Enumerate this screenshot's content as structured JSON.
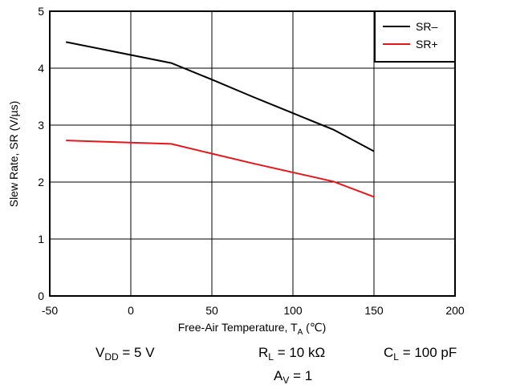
{
  "chart_data": {
    "type": "line",
    "xlabel_main": "Free-Air Temperature, T",
    "xlabel_sub": "A",
    "xlabel_unit": " (℃)",
    "ylabel": "Slew Rate, SR (V/µs)",
    "xlim": [
      -50,
      200
    ],
    "ylim": [
      0,
      5
    ],
    "x_ticks": [
      -50,
      0,
      50,
      100,
      150,
      200
    ],
    "y_ticks": [
      0,
      1,
      2,
      3,
      4,
      5
    ],
    "grid": true,
    "legend_position": "top-right",
    "series": [
      {
        "name": "SR–",
        "color": "#000000",
        "x": [
          -40,
          25,
          50,
          75,
          100,
          125,
          150
        ],
        "y": [
          4.46,
          4.09,
          3.8,
          3.5,
          3.21,
          2.92,
          2.54
        ]
      },
      {
        "name": "SR+",
        "color": "#e0191f",
        "x": [
          -40,
          25,
          50,
          75,
          100,
          125,
          150
        ],
        "y": [
          2.73,
          2.67,
          2.5,
          2.33,
          2.17,
          2.01,
          1.74
        ]
      }
    ],
    "figure_id": "D001"
  },
  "conditions": {
    "vdd_main": "V",
    "vdd_sub": "DD",
    "vdd_value": " = 5 V",
    "rl_main": "R",
    "rl_sub": "L",
    "rl_value": " = 10 kΩ",
    "cl_main": "C",
    "cl_sub": "L",
    "cl_value": " = 100 pF",
    "av_main": "A",
    "av_sub": "V",
    "av_value": " = 1"
  }
}
